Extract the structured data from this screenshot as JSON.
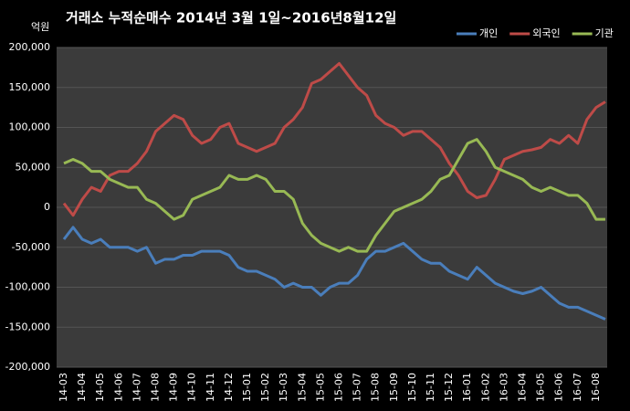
{
  "chart_data": {
    "type": "line",
    "title": "거래소 누적순매수 2014년 3월 1일~2016년8월12일",
    "y_unit": "억원",
    "categories": [
      "14-03",
      null,
      "14-04",
      null,
      "14-05",
      null,
      "14-06",
      null,
      "14-07",
      null,
      "14-08",
      null,
      "14-09",
      null,
      "14-10",
      null,
      "14-11",
      null,
      "14-12",
      null,
      "15-01",
      null,
      "15-02",
      null,
      "15-03",
      null,
      "15-04",
      null,
      "15-05",
      null,
      "15-06",
      null,
      "15-07",
      null,
      "15-08",
      null,
      "15-09",
      null,
      "15-10",
      null,
      "15-11",
      null,
      "15-12",
      null,
      "16-01",
      null,
      "16-02",
      null,
      "16-03",
      null,
      "16-04",
      null,
      "16-05",
      null,
      "16-06",
      null,
      "16-07",
      null,
      "16-08",
      null
    ],
    "series": [
      {
        "name": "개인",
        "color": "#4a7ebb",
        "values": [
          -40000,
          -25000,
          -40000,
          -45000,
          -40000,
          -50000,
          -50000,
          -50000,
          -55000,
          -50000,
          -70000,
          -65000,
          -65000,
          -60000,
          -60000,
          -55000,
          -55000,
          -55000,
          -60000,
          -75000,
          -80000,
          -80000,
          -85000,
          -90000,
          -100000,
          -95000,
          -100000,
          -100000,
          -110000,
          -100000,
          -95000,
          -95000,
          -85000,
          -65000,
          -55000,
          -55000,
          -50000,
          -45000,
          -55000,
          -65000,
          -70000,
          -70000,
          -80000,
          -85000,
          -90000,
          -75000,
          -85000,
          -95000,
          -100000,
          -105000,
          -108000,
          -105000,
          -100000,
          -110000,
          -120000,
          -125000,
          -125000,
          -130000,
          -135000,
          -140000
        ]
      },
      {
        "name": "외국인",
        "color": "#be4b48",
        "values": [
          5000,
          -10000,
          10000,
          25000,
          20000,
          40000,
          45000,
          45000,
          55000,
          70000,
          95000,
          105000,
          115000,
          110000,
          90000,
          80000,
          85000,
          100000,
          105000,
          80000,
          75000,
          70000,
          75000,
          80000,
          100000,
          110000,
          125000,
          155000,
          160000,
          170000,
          180000,
          165000,
          150000,
          140000,
          115000,
          105000,
          100000,
          90000,
          95000,
          95000,
          85000,
          75000,
          55000,
          40000,
          20000,
          12000,
          15000,
          35000,
          60000,
          65000,
          70000,
          72000,
          75000,
          85000,
          80000,
          90000,
          80000,
          110000,
          125000,
          132000
        ]
      },
      {
        "name": "기관",
        "color": "#98b954",
        "values": [
          55000,
          60000,
          55000,
          45000,
          45000,
          35000,
          30000,
          25000,
          25000,
          10000,
          5000,
          -5000,
          -15000,
          -10000,
          10000,
          15000,
          20000,
          25000,
          40000,
          35000,
          35000,
          40000,
          35000,
          20000,
          20000,
          10000,
          -20000,
          -35000,
          -45000,
          -50000,
          -55000,
          -50000,
          -55000,
          -55000,
          -35000,
          -20000,
          -5000,
          0,
          5000,
          10000,
          20000,
          35000,
          40000,
          60000,
          80000,
          85000,
          70000,
          50000,
          45000,
          40000,
          35000,
          25000,
          20000,
          25000,
          20000,
          15000,
          15000,
          5000,
          -15000,
          -15000
        ]
      }
    ],
    "ylim": [
      -200000,
      200000
    ],
    "yticks": [
      {
        "value": -200000,
        "label": "-200,000"
      },
      {
        "value": -150000,
        "label": "-150,000"
      },
      {
        "value": -100000,
        "label": "-100,000"
      },
      {
        "value": -50000,
        "label": "-50,000"
      },
      0,
      {
        "value": 50000,
        "label": "50,000"
      },
      {
        "value": 100000,
        "label": "100,000"
      },
      {
        "value": 150000,
        "label": "150,000"
      },
      {
        "value": 200000,
        "label": "200,000"
      }
    ],
    "grid": true,
    "legend": "top-right"
  }
}
